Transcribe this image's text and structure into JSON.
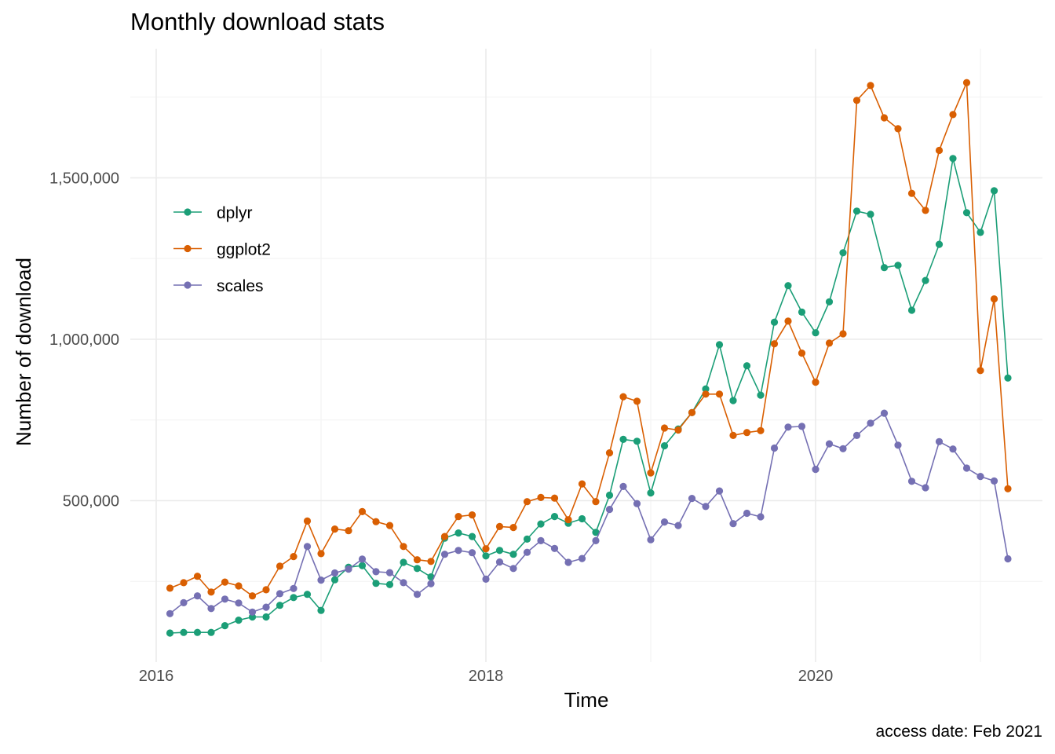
{
  "chart_data": {
    "type": "line",
    "title": "Monthly download stats",
    "xlabel": "Time",
    "ylabel": "Number of download",
    "caption": "access date: Feb 2021",
    "x_ticks": [
      "2016",
      "2018",
      "2020"
    ],
    "y_ticks": [
      "500,000",
      "1,000,000",
      "1,500,000"
    ],
    "x_start": "2016-02",
    "x_interval": "month",
    "ylim": [
      20000,
      1880000
    ],
    "grid": true,
    "legend_position": "left-top",
    "series": [
      {
        "name": "dplyr",
        "color": "#1B9E77",
        "values": [
          90000,
          92000,
          92000,
          92000,
          113000,
          130000,
          140000,
          140000,
          176000,
          200000,
          210000,
          160000,
          255000,
          294000,
          299000,
          244000,
          240000,
          309000,
          290000,
          264000,
          384000,
          400000,
          389000,
          329000,
          346000,
          334000,
          381000,
          428000,
          451000,
          430000,
          444000,
          402000,
          517000,
          690000,
          684000,
          524000,
          670000,
          722000,
          773000,
          846000,
          983000,
          810000,
          918000,
          827000,
          1053000,
          1166000,
          1084000,
          1020000,
          1116000,
          1268000,
          1397000,
          1387000,
          1222000,
          1229000,
          1090000,
          1182000,
          1294000,
          1560000,
          1392000,
          1331000,
          1460000,
          880000
        ]
      },
      {
        "name": "ggplot2",
        "color": "#D95F02",
        "values": [
          229000,
          246000,
          266000,
          217000,
          248000,
          236000,
          205000,
          224000,
          297000,
          327000,
          437000,
          336000,
          412000,
          407000,
          466000,
          435000,
          423000,
          358000,
          317000,
          312000,
          389000,
          451000,
          456000,
          351000,
          420000,
          417000,
          497000,
          510000,
          508000,
          441000,
          552000,
          497000,
          648000,
          822000,
          808000,
          586000,
          725000,
          719000,
          773000,
          830000,
          830000,
          702000,
          711000,
          717000,
          986000,
          1056000,
          957000,
          867000,
          988000,
          1017000,
          1740000,
          1786000,
          1686000,
          1652000,
          1452000,
          1399000,
          1585000,
          1696000,
          1795000,
          903000,
          1125000,
          537000
        ]
      },
      {
        "name": "scales",
        "color": "#7570B3",
        "values": [
          150000,
          184000,
          205000,
          166000,
          195000,
          183000,
          155000,
          170000,
          212000,
          228000,
          358000,
          254000,
          276000,
          288000,
          319000,
          280000,
          277000,
          246000,
          210000,
          243000,
          334000,
          346000,
          339000,
          257000,
          310000,
          290000,
          340000,
          376000,
          352000,
          309000,
          321000,
          376000,
          473000,
          544000,
          491000,
          379000,
          434000,
          423000,
          507000,
          482000,
          530000,
          429000,
          461000,
          450000,
          663000,
          728000,
          730000,
          597000,
          676000,
          661000,
          702000,
          740000,
          771000,
          672000,
          560000,
          540000,
          683000,
          660000,
          601000,
          575000,
          561000,
          320000
        ]
      }
    ]
  }
}
